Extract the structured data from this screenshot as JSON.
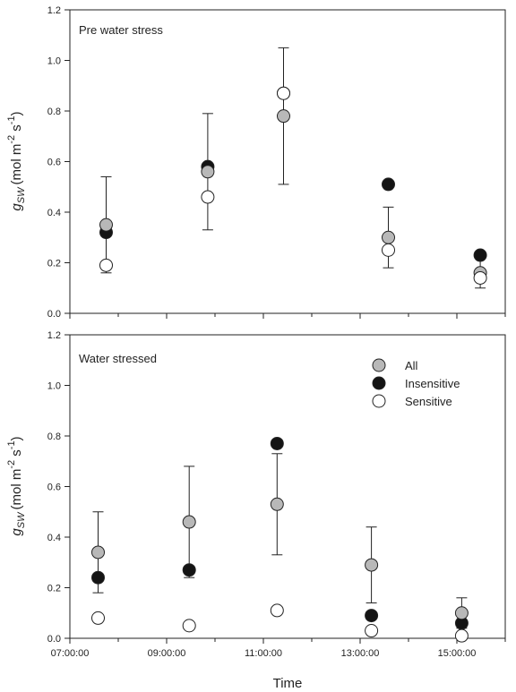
{
  "chart_data": [
    {
      "type": "scatter",
      "title": "Pre water stress",
      "ylabel": {
        "main": "g",
        "sub": "SW",
        "units": "(mol m",
        "exp1": "-2",
        "mid": " s",
        "exp2": "-1",
        "close": ")"
      },
      "xlabel": "",
      "ylim": [
        0.0,
        1.2
      ],
      "yticks": [
        "0.0",
        "0.2",
        "0.4",
        "0.6",
        "0.8",
        "1.0",
        "1.2"
      ],
      "x_is_time": true,
      "show_x_tick_labels": false,
      "grid": false,
      "series": [
        {
          "name": "All",
          "color": "#b8b8b8",
          "x": [
            "07:45",
            "09:51",
            "11:25",
            "13:35",
            "15:29"
          ],
          "y": [
            0.35,
            0.56,
            0.78,
            0.3,
            0.16
          ],
          "err": [
            0.19,
            0.23,
            0.27,
            0.12,
            0.06
          ]
        },
        {
          "name": "Insensitive",
          "color": "#141414",
          "x": [
            "07:45",
            "09:51",
            "11:25",
            "13:35",
            "15:29"
          ],
          "y": [
            0.32,
            0.58,
            0.87,
            0.51,
            0.23
          ]
        },
        {
          "name": "Sensitive",
          "color": "#ffffff",
          "x": [
            "07:45",
            "09:51",
            "11:25",
            "13:35",
            "15:29"
          ],
          "y": [
            0.19,
            0.46,
            0.87,
            0.25,
            0.14
          ]
        }
      ]
    },
    {
      "type": "scatter",
      "title": "Water stressed",
      "ylabel": {
        "main": "g",
        "sub": "SW",
        "units": "(mol m",
        "exp1": "-2",
        "mid": " s",
        "exp2": "-1",
        "close": ")"
      },
      "xlabel": "Time",
      "ylim": [
        0.0,
        1.2
      ],
      "yticks": [
        "0.0",
        "0.2",
        "0.4",
        "0.6",
        "0.8",
        "1.0",
        "1.2"
      ],
      "xlim": [
        "07:00",
        "16:00"
      ],
      "xticks": [
        "07:00:00",
        "09:00:00",
        "11:00:00",
        "13:00:00",
        "15:00:00"
      ],
      "legend": {
        "position": "top-right",
        "items": [
          "All",
          "Insensitive",
          "Sensitive"
        ]
      },
      "grid": false,
      "series": [
        {
          "name": "All",
          "color": "#b8b8b8",
          "x": [
            "07:35",
            "09:28",
            "11:17",
            "13:14",
            "15:06"
          ],
          "y": [
            0.34,
            0.46,
            0.53,
            0.29,
            0.1
          ],
          "err": [
            0.16,
            0.22,
            0.2,
            0.15,
            0.06
          ]
        },
        {
          "name": "Insensitive",
          "color": "#141414",
          "x": [
            "07:35",
            "09:28",
            "11:17",
            "13:14",
            "15:06"
          ],
          "y": [
            0.24,
            0.27,
            0.77,
            0.09,
            0.06
          ]
        },
        {
          "name": "Sensitive",
          "color": "#ffffff",
          "x": [
            "07:35",
            "09:28",
            "11:17",
            "13:14",
            "15:06"
          ],
          "y": [
            0.08,
            0.05,
            0.11,
            0.03,
            0.01
          ]
        }
      ]
    }
  ]
}
